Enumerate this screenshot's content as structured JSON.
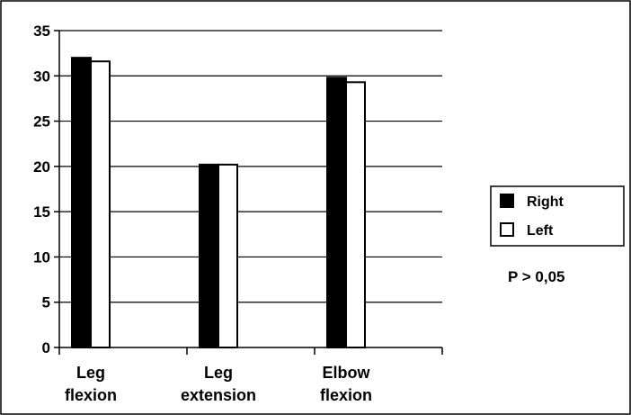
{
  "chart_data": {
    "type": "bar",
    "categories": [
      [
        "Leg",
        "flexion"
      ],
      [
        "Leg",
        "extension"
      ],
      [
        "Elbow",
        "flexion"
      ]
    ],
    "series": [
      {
        "name": "Right",
        "values": [
          32,
          20.2,
          29.8
        ],
        "fill": "#000000"
      },
      {
        "name": "Left",
        "values": [
          31.6,
          20.2,
          29.3
        ],
        "fill": "#ffffff"
      }
    ],
    "ylim": [
      0,
      35
    ],
    "yticks": [
      0,
      5,
      10,
      15,
      20,
      25,
      30,
      35
    ],
    "grid": true,
    "legend": "right",
    "annotation": "P > 0,05"
  }
}
